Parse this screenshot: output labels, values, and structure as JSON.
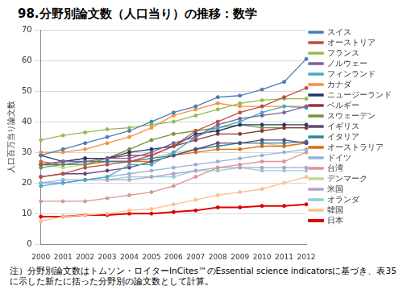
{
  "chart_data": {
    "type": "line",
    "title": "98.分野別論文数（人口当り）の推移：数学",
    "y_label": "人口百万当り論文数",
    "annotation": "注）分野別論文数はトムソン・ロイターInCites™のEssential science indicatorsに基づき、表35に示した新たに括った分野別の論文数として計算。",
    "categories": [
      "2000",
      "2001",
      "2002",
      "2003",
      "2004",
      "2005",
      "2006",
      "2007",
      "2008",
      "2009",
      "2010",
      "2011",
      "2012"
    ],
    "ylim": [
      0,
      70
    ],
    "yticks": [
      0,
      10,
      20,
      30,
      40,
      50,
      60,
      70
    ],
    "grid": true,
    "legend": "right",
    "marker": "circle",
    "series": [
      {
        "name": "スイス",
        "color": "#4a7ebb",
        "values": [
          29,
          31,
          33,
          35,
          37,
          40,
          43,
          45,
          48,
          48.5,
          50.5,
          53,
          60.5
        ]
      },
      {
        "name": "オーストリア",
        "color": "#be4b48",
        "values": [
          22,
          23,
          25,
          26,
          27,
          29,
          32,
          37,
          40,
          43,
          45,
          48,
          51
        ]
      },
      {
        "name": "フランス",
        "color": "#98b954",
        "values": [
          34,
          35.5,
          36.5,
          37.5,
          38,
          39,
          40,
          42,
          44,
          46,
          47,
          47.5,
          47.5
        ]
      },
      {
        "name": "ノルウェー",
        "color": "#7d60a0",
        "values": [
          26,
          27,
          27,
          28,
          28,
          30,
          33,
          35,
          39,
          41,
          42,
          43,
          45
        ]
      },
      {
        "name": "フィンランド",
        "color": "#46aac5",
        "values": [
          19,
          20,
          21,
          22,
          26,
          26,
          30,
          35,
          38,
          40,
          43,
          45,
          44.5
        ]
      },
      {
        "name": "カナダ",
        "color": "#f69240",
        "values": [
          30,
          30,
          31,
          33,
          35,
          38,
          42,
          44,
          46,
          45,
          45,
          45,
          45
        ]
      },
      {
        "name": "ニュージーランド",
        "color": "#1f3864",
        "values": [
          29,
          27,
          28,
          28,
          30,
          31,
          32,
          36,
          37,
          39,
          39,
          39,
          39
        ]
      },
      {
        "name": "ベルギー",
        "color": "#943634",
        "values": [
          26,
          27,
          28,
          28,
          29,
          29,
          32,
          34,
          36,
          36,
          37,
          38,
          38
        ]
      },
      {
        "name": "スウェーデン",
        "color": "#77933c",
        "values": [
          25,
          26,
          26,
          28,
          31,
          34,
          36,
          37,
          38,
          39,
          38,
          38,
          38
        ]
      },
      {
        "name": "イギリス",
        "color": "#5f497a",
        "values": [
          22,
          23,
          23,
          24,
          25,
          27,
          29,
          31,
          33,
          33,
          34,
          34,
          33
        ]
      },
      {
        "name": "イタリア",
        "color": "#31859b",
        "values": [
          26,
          26,
          27,
          27,
          27,
          28,
          29,
          31,
          32,
          33,
          33,
          33,
          33.5
        ]
      },
      {
        "name": "オーストラリア",
        "color": "#e36c09",
        "values": [
          27,
          26,
          26,
          27,
          27,
          27,
          29,
          30,
          31,
          31,
          32,
          32,
          33
        ]
      },
      {
        "name": "ドイツ",
        "color": "#95b3d7",
        "values": [
          20,
          21,
          21,
          22,
          23,
          24,
          25,
          26,
          27,
          28,
          29,
          30,
          31
        ]
      },
      {
        "name": "台湾",
        "color": "#d99694",
        "values": [
          14,
          14,
          14,
          15,
          16,
          17,
          19,
          22,
          25,
          26,
          27,
          27,
          30
        ]
      },
      {
        "name": "デンマーク",
        "color": "#c3d69b",
        "values": [
          26,
          25,
          26,
          27,
          27,
          28,
          30,
          31,
          33,
          33,
          33,
          32,
          33
        ]
      },
      {
        "name": "米国",
        "color": "#b3a2c7",
        "values": [
          20,
          20,
          21,
          21,
          21,
          22,
          23,
          24,
          25,
          25,
          25,
          25,
          25
        ]
      },
      {
        "name": "オランダ",
        "color": "#93cddd",
        "values": [
          20,
          20,
          21,
          21,
          22,
          22,
          22,
          24,
          24,
          25,
          24,
          24,
          24
        ]
      },
      {
        "name": "韓国",
        "color": "#fac08f",
        "values": [
          7.5,
          9,
          9.5,
          10,
          11,
          11.5,
          13,
          14.5,
          16,
          17,
          18,
          20,
          22
        ]
      },
      {
        "name": "日本",
        "color": "#e00000",
        "values": [
          9,
          9,
          9.5,
          9.5,
          10,
          10,
          10.5,
          11,
          12,
          12,
          12.5,
          12.5,
          13
        ]
      }
    ]
  }
}
